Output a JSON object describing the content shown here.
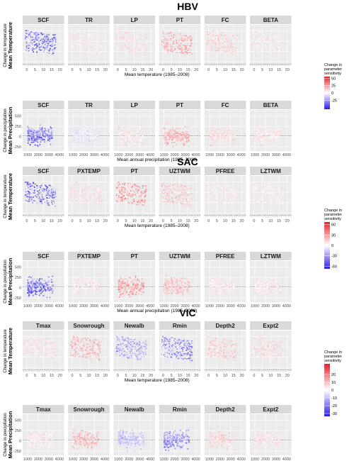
{
  "chart_data": [
    {
      "type": "scatter",
      "model": "HBV",
      "parameters": [
        "SCF",
        "TR",
        "LP",
        "PT",
        "FC",
        "BETA"
      ],
      "legend": {
        "title": "Change in parameter sensitivity",
        "ticks": [
          50,
          25,
          0,
          -25
        ]
      },
      "rows": [
        {
          "row_label": "Mean Temperature",
          "ylabel": "Change in temperature",
          "xlabel": "Mean temperature (1985–2008)",
          "x_ticks": [
            "0",
            "5",
            "10",
            "15",
            "20"
          ],
          "y_ticks": []
        },
        {
          "row_label": "Mean Precipitation",
          "ylabel": "Change in precipitation",
          "xlabel": "Mean annual precipitation (1985–2008)",
          "x_ticks": [
            "1000",
            "2000",
            "3000",
            "4000"
          ],
          "y_ticks": [
            "500",
            "250",
            "0",
            "-250"
          ]
        }
      ]
    },
    {
      "type": "scatter",
      "model": "SAC",
      "parameters": [
        "SCF",
        "PXTEMP",
        "PT",
        "UZTWM",
        "PFREE",
        "LZTWM"
      ],
      "legend": {
        "title": "Change in parameter sensitivity",
        "ticks": [
          60,
          30,
          0,
          -30,
          -60
        ]
      },
      "rows": [
        {
          "row_label": "Mean Temperature",
          "ylabel": "Change in temperature",
          "xlabel": "Mean temperature (1985–2008)",
          "x_ticks": [
            "0",
            "5",
            "10",
            "15",
            "20"
          ],
          "y_ticks": []
        },
        {
          "row_label": "Mean Precipitation",
          "ylabel": "Change in precipitation",
          "xlabel": "Mean annual precipitation (1985–2008)",
          "x_ticks": [
            "1000",
            "2000",
            "3000",
            "4000"
          ],
          "y_ticks": [
            "500",
            "250",
            "0",
            "-250"
          ]
        }
      ]
    },
    {
      "type": "scatter",
      "model": "VIC",
      "parameters": [
        "Tmax",
        "Snowrough",
        "Newalb",
        "Rmin",
        "Depth2",
        "Expt2"
      ],
      "legend": {
        "title": "Change in parameter sensitivity",
        "ticks": [
          20,
          10,
          0,
          -10,
          -20,
          -30
        ]
      },
      "rows": [
        {
          "row_label": "Mean Temperature",
          "ylabel": "Change in temperature",
          "xlabel": "Mean temperature (1985–2008)",
          "x_ticks": [
            "0",
            "5",
            "10",
            "15",
            "20"
          ],
          "y_ticks": []
        },
        {
          "row_label": "Mean Precipitation",
          "ylabel": "Change in precipitation",
          "xlabel": "Mean annual precipitation (1985–2008)",
          "x_ticks": [
            "1000",
            "2000",
            "3000",
            "4000"
          ],
          "y_ticks": [
            "500",
            "250",
            "0",
            "-250"
          ]
        }
      ]
    }
  ],
  "colors": {
    "panel_bg": "#ebebeb",
    "strip_bg": "#d9d9d9",
    "grid": "#ffffff",
    "high": "#e8202a",
    "mid": "#ffffff",
    "low": "#2b1de8"
  }
}
